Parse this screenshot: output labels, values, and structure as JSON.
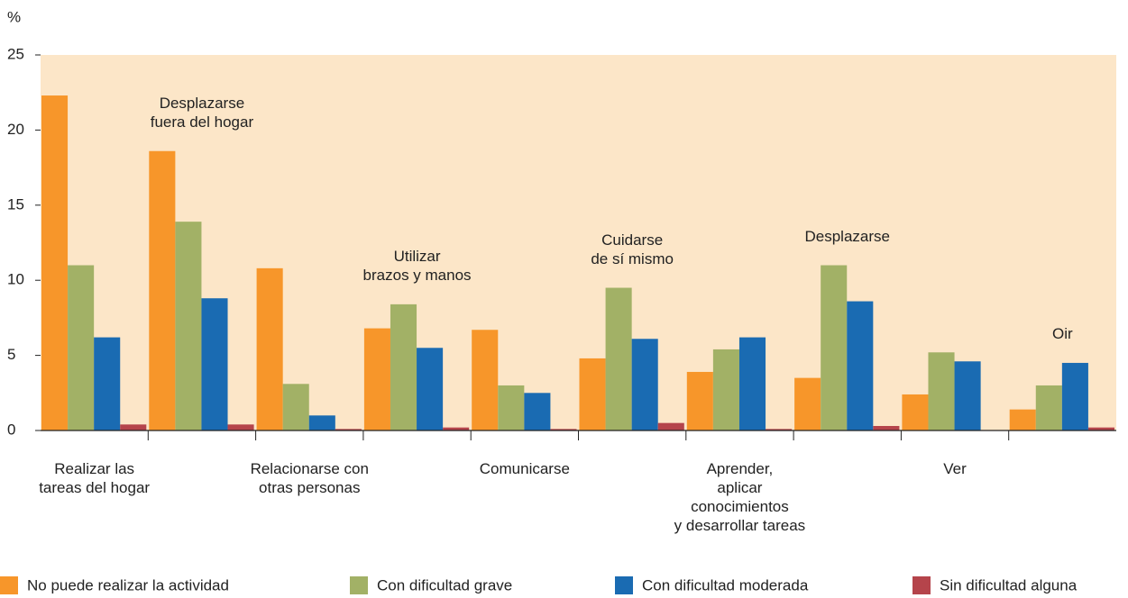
{
  "chart_data": {
    "type": "bar",
    "y_label": "%",
    "categories": [
      "Realizar las\ntareas del hogar",
      "Desplazarse\nfuera del hogar",
      "Relacionarse con\notras personas",
      "Utilizar\nbrazos y manos",
      "Comunicarse",
      "Cuidarse\nde sí mismo",
      "Aprender,\naplicar\nconocimientos\ny desarrollar tareas",
      "Desplazarse",
      "Ver",
      "Oir"
    ],
    "series": [
      {
        "name": "No puede realizar la actividad",
        "color": "#f7962a",
        "values": [
          22.3,
          18.6,
          10.8,
          6.8,
          6.7,
          4.8,
          3.9,
          3.5,
          2.4,
          1.4
        ]
      },
      {
        "name": "Con dificultad grave",
        "color": "#a2b166",
        "values": [
          11.0,
          13.9,
          3.1,
          8.4,
          3.0,
          9.5,
          5.4,
          11.0,
          5.2,
          3.0
        ]
      },
      {
        "name": "Con dificultad moderada",
        "color": "#1a6bb2",
        "values": [
          6.2,
          8.8,
          1.0,
          5.5,
          2.5,
          6.1,
          6.2,
          8.6,
          4.6,
          4.5
        ]
      },
      {
        "name": "Sin dificultad alguna",
        "color": "#b5444b",
        "values": [
          0.4,
          0.4,
          0.1,
          0.2,
          0.1,
          0.5,
          0.1,
          0.3,
          0,
          0.2
        ]
      }
    ],
    "ylim": [
      0,
      25
    ],
    "yticks": [
      0,
      5,
      10,
      15,
      20,
      25
    ],
    "plot_background": "#fce6c8"
  }
}
